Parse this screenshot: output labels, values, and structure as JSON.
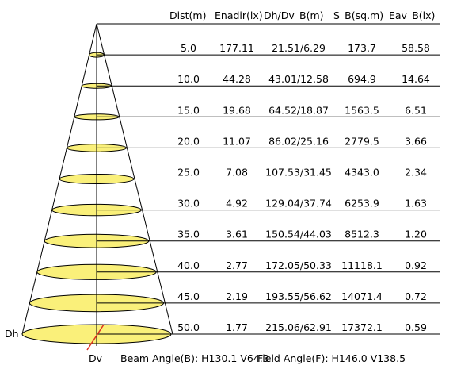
{
  "headers": {
    "dist": "Dist(m)",
    "enadir": "Enadir(lx)",
    "dh_dv": "Dh/Dv_B(m)",
    "s_b": "S_B(sq.m)",
    "eav": "Eav_B(lx)"
  },
  "rows": [
    {
      "dist": "5.0",
      "enadir": "177.11",
      "dh_dv": "21.51/6.29",
      "s_b": "173.7",
      "eav": "58.58"
    },
    {
      "dist": "10.0",
      "enadir": "44.28",
      "dh_dv": "43.01/12.58",
      "s_b": "694.9",
      "eav": "14.64"
    },
    {
      "dist": "15.0",
      "enadir": "19.68",
      "dh_dv": "64.52/18.87",
      "s_b": "1563.5",
      "eav": "6.51"
    },
    {
      "dist": "20.0",
      "enadir": "11.07",
      "dh_dv": "86.02/25.16",
      "s_b": "2779.5",
      "eav": "3.66"
    },
    {
      "dist": "25.0",
      "enadir": "7.08",
      "dh_dv": "107.53/31.45",
      "s_b": "4343.0",
      "eav": "2.34"
    },
    {
      "dist": "30.0",
      "enadir": "4.92",
      "dh_dv": "129.04/37.74",
      "s_b": "6253.9",
      "eav": "1.63"
    },
    {
      "dist": "35.0",
      "enadir": "3.61",
      "dh_dv": "150.54/44.03",
      "s_b": "8512.3",
      "eav": "1.20"
    },
    {
      "dist": "40.0",
      "enadir": "2.77",
      "dh_dv": "172.05/50.33",
      "s_b": "11118.1",
      "eav": "0.92"
    },
    {
      "dist": "45.0",
      "enadir": "2.19",
      "dh_dv": "193.55/56.62",
      "s_b": "14071.4",
      "eav": "0.72"
    },
    {
      "dist": "50.0",
      "enadir": "1.77",
      "dh_dv": "215.06/62.91",
      "s_b": "17372.1",
      "eav": "0.59"
    }
  ],
  "labels": {
    "dh": "Dh",
    "dv": "Dv",
    "beam_angle": "Beam Angle(B): H130.1 V64.3",
    "field_angle": "Field Angle(F): H146.0 V138.5"
  },
  "colors": {
    "ellipse_fill": "#faf07a",
    "line": "#000000",
    "dv_marker": "#e03020"
  }
}
